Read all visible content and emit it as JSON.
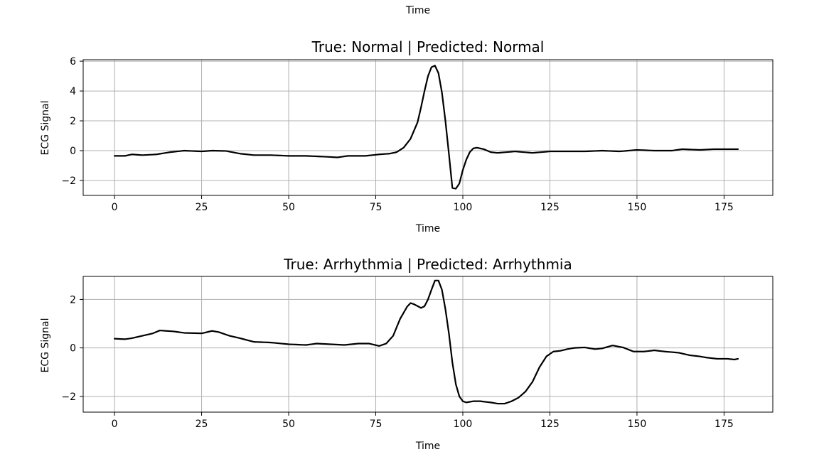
{
  "figure_top_label": "Time",
  "chart_data": [
    {
      "type": "line",
      "title": "True: Normal | Predicted: Normal",
      "xlabel": "Time",
      "ylabel": "ECG Signal",
      "xlim": [
        -9,
        189
      ],
      "ylim": [
        -3.0,
        6.1
      ],
      "xticks": [
        0,
        25,
        50,
        75,
        100,
        125,
        150,
        175
      ],
      "xtick_labels": [
        "0",
        "25",
        "50",
        "75",
        "100",
        "125",
        "150",
        "175"
      ],
      "yticks": [
        -2,
        0,
        2,
        4,
        6
      ],
      "ytick_labels": [
        "−2",
        "0",
        "2",
        "4",
        "6"
      ],
      "grid": true,
      "keypoints": [
        [
          0,
          -0.35
        ],
        [
          3,
          -0.35
        ],
        [
          5,
          -0.25
        ],
        [
          8,
          -0.3
        ],
        [
          12,
          -0.25
        ],
        [
          16,
          -0.1
        ],
        [
          20,
          0.0
        ],
        [
          25,
          -0.05
        ],
        [
          28,
          0.0
        ],
        [
          32,
          -0.02
        ],
        [
          36,
          -0.2
        ],
        [
          40,
          -0.3
        ],
        [
          45,
          -0.3
        ],
        [
          50,
          -0.35
        ],
        [
          55,
          -0.35
        ],
        [
          60,
          -0.4
        ],
        [
          64,
          -0.45
        ],
        [
          67,
          -0.35
        ],
        [
          72,
          -0.35
        ],
        [
          76,
          -0.25
        ],
        [
          79,
          -0.2
        ],
        [
          81,
          -0.1
        ],
        [
          83,
          0.2
        ],
        [
          85,
          0.8
        ],
        [
          87,
          1.9
        ],
        [
          88,
          2.9
        ],
        [
          89,
          4.0
        ],
        [
          90,
          5.0
        ],
        [
          91,
          5.6
        ],
        [
          92,
          5.7
        ],
        [
          93,
          5.2
        ],
        [
          94,
          3.9
        ],
        [
          95,
          2.0
        ],
        [
          96,
          -0.2
        ],
        [
          97,
          -2.5
        ],
        [
          98,
          -2.55
        ],
        [
          99,
          -2.2
        ],
        [
          100,
          -1.3
        ],
        [
          101,
          -0.6
        ],
        [
          102,
          -0.1
        ],
        [
          103,
          0.15
        ],
        [
          104,
          0.2
        ],
        [
          106,
          0.1
        ],
        [
          108,
          -0.1
        ],
        [
          110,
          -0.15
        ],
        [
          115,
          -0.05
        ],
        [
          120,
          -0.15
        ],
        [
          125,
          -0.05
        ],
        [
          130,
          -0.05
        ],
        [
          135,
          -0.05
        ],
        [
          140,
          0.0
        ],
        [
          145,
          -0.05
        ],
        [
          150,
          0.05
        ],
        [
          155,
          0.0
        ],
        [
          160,
          0.0
        ],
        [
          163,
          0.1
        ],
        [
          168,
          0.05
        ],
        [
          172,
          0.1
        ],
        [
          175,
          0.1
        ],
        [
          179,
          0.1
        ]
      ]
    },
    {
      "type": "line",
      "title": "True: Arrhythmia | Predicted: Arrhythmia",
      "xlabel": "Time",
      "ylabel": "ECG Signal",
      "xlim": [
        -9,
        189
      ],
      "ylim": [
        -2.65,
        2.95
      ],
      "xticks": [
        0,
        25,
        50,
        75,
        100,
        125,
        150,
        175
      ],
      "xtick_labels": [
        "0",
        "25",
        "50",
        "75",
        "100",
        "125",
        "150",
        "175"
      ],
      "yticks": [
        -2,
        0,
        2
      ],
      "ytick_labels": [
        "−2",
        "0",
        "2"
      ],
      "grid": true,
      "keypoints": [
        [
          0,
          0.38
        ],
        [
          3,
          0.36
        ],
        [
          5,
          0.4
        ],
        [
          8,
          0.5
        ],
        [
          11,
          0.6
        ],
        [
          13,
          0.72
        ],
        [
          17,
          0.68
        ],
        [
          20,
          0.62
        ],
        [
          25,
          0.6
        ],
        [
          28,
          0.7
        ],
        [
          30,
          0.65
        ],
        [
          33,
          0.5
        ],
        [
          36,
          0.4
        ],
        [
          40,
          0.25
        ],
        [
          45,
          0.22
        ],
        [
          50,
          0.15
        ],
        [
          55,
          0.12
        ],
        [
          58,
          0.18
        ],
        [
          62,
          0.15
        ],
        [
          66,
          0.12
        ],
        [
          70,
          0.18
        ],
        [
          73,
          0.18
        ],
        [
          76,
          0.08
        ],
        [
          78,
          0.18
        ],
        [
          80,
          0.5
        ],
        [
          82,
          1.2
        ],
        [
          84,
          1.7
        ],
        [
          85,
          1.85
        ],
        [
          86,
          1.8
        ],
        [
          88,
          1.65
        ],
        [
          89,
          1.72
        ],
        [
          90,
          2.0
        ],
        [
          91,
          2.4
        ],
        [
          92,
          2.78
        ],
        [
          93,
          2.78
        ],
        [
          94,
          2.4
        ],
        [
          95,
          1.6
        ],
        [
          96,
          0.6
        ],
        [
          97,
          -0.6
        ],
        [
          98,
          -1.5
        ],
        [
          99,
          -2.0
        ],
        [
          100,
          -2.2
        ],
        [
          101,
          -2.25
        ],
        [
          103,
          -2.2
        ],
        [
          105,
          -2.2
        ],
        [
          108,
          -2.25
        ],
        [
          110,
          -2.3
        ],
        [
          112,
          -2.3
        ],
        [
          114,
          -2.2
        ],
        [
          116,
          -2.05
        ],
        [
          118,
          -1.8
        ],
        [
          120,
          -1.4
        ],
        [
          122,
          -0.8
        ],
        [
          124,
          -0.35
        ],
        [
          126,
          -0.15
        ],
        [
          128,
          -0.12
        ],
        [
          130,
          -0.05
        ],
        [
          132,
          0.0
        ],
        [
          135,
          0.02
        ],
        [
          138,
          -0.05
        ],
        [
          140,
          -0.02
        ],
        [
          143,
          0.1
        ],
        [
          146,
          0.02
        ],
        [
          149,
          -0.15
        ],
        [
          152,
          -0.15
        ],
        [
          155,
          -0.1
        ],
        [
          158,
          -0.15
        ],
        [
          162,
          -0.2
        ],
        [
          165,
          -0.3
        ],
        [
          168,
          -0.35
        ],
        [
          170,
          -0.4
        ],
        [
          173,
          -0.45
        ],
        [
          176,
          -0.45
        ],
        [
          178,
          -0.48
        ],
        [
          179,
          -0.45
        ]
      ]
    }
  ]
}
